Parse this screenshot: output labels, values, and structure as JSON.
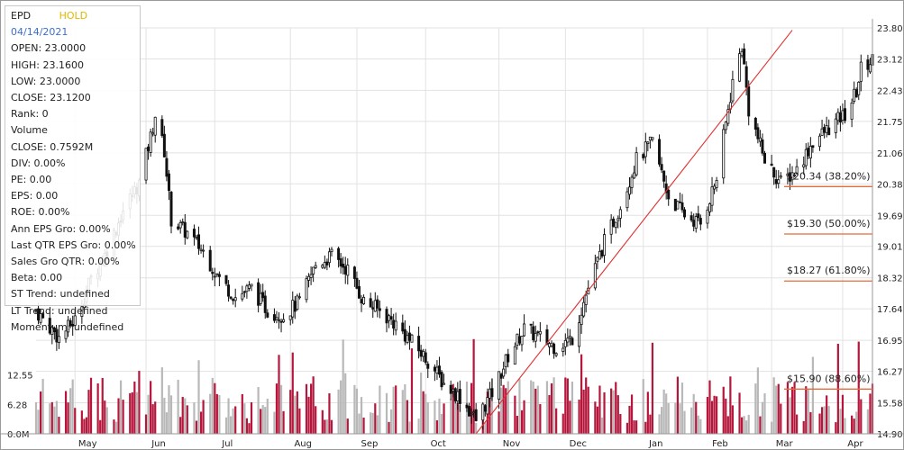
{
  "colors": {
    "up_volume": "#b5163b",
    "down_volume": "#b8b8b8",
    "candle": "#111111",
    "trendline": "#e03030",
    "fib_line": "#e86a3a",
    "grid": "#e2e2e2",
    "rating": "#e0b800",
    "date": "#3b6fd0"
  },
  "info_panel": {
    "ticker": "EPD",
    "rating": "HOLD",
    "date": "04/14/2021",
    "rows": [
      "OPEN: 23.0000",
      "HIGH: 23.1600",
      "LOW: 23.0000",
      "CLOSE: 23.1200",
      "Rank: 0",
      "Volume",
      "CLOSE: 0.7592M",
      "DIV: 0.00%",
      "PE: 0.00",
      "EPS: 0.00",
      "ROE: 0.00%",
      "Ann EPS Gro: 0.00%",
      "Last QTR EPS Gro: 0.00%",
      "Sales Gro QTR: 0.00%",
      "Beta: 0.00",
      "ST Trend: undefined",
      "LT Trend: undefined",
      "Momentum: undefined"
    ]
  },
  "chart_data": {
    "type": "candlestick",
    "ticker": "EPD",
    "price_axis": {
      "ticks": [
        "23.80",
        "23.12",
        "22.43",
        "21.75",
        "21.06",
        "20.38",
        "19.69",
        "19.01",
        "18.32",
        "17.64",
        "16.95",
        "16.27",
        "15.58",
        "14.90"
      ],
      "ylim": [
        14.9,
        23.8
      ],
      "side": "right"
    },
    "volume_axis": {
      "ticks": [
        "12.55",
        "6.28",
        "0.0M"
      ],
      "ylim": [
        0,
        25
      ],
      "side": "left"
    },
    "x_axis": {
      "ticks": [
        "May",
        "Jun",
        "Jul",
        "Aug",
        "Sep",
        "Oct",
        "Nov",
        "Dec",
        "Jan",
        "Feb",
        "Mar",
        "Apr"
      ],
      "start_date": "2020-04-14",
      "end_date": "2021-04-14"
    },
    "price_path": [
      [
        "2020-04-14",
        17.6
      ],
      [
        "2020-04-24",
        17.0
      ],
      [
        "2020-05-01",
        17.4
      ],
      [
        "2020-05-08",
        18.3
      ],
      [
        "2020-05-15",
        18.9
      ],
      [
        "2020-05-22",
        19.8
      ],
      [
        "2020-05-29",
        20.4
      ],
      [
        "2020-06-03",
        21.4
      ],
      [
        "2020-06-05",
        21.9
      ],
      [
        "2020-06-09",
        21.1
      ],
      [
        "2020-06-12",
        19.6
      ],
      [
        "2020-06-19",
        19.3
      ],
      [
        "2020-06-26",
        18.9
      ],
      [
        "2020-07-03",
        18.3
      ],
      [
        "2020-07-10",
        17.9
      ],
      [
        "2020-07-17",
        18.1
      ],
      [
        "2020-07-24",
        17.6
      ],
      [
        "2020-07-31",
        17.5
      ],
      [
        "2020-08-07",
        17.8
      ],
      [
        "2020-08-14",
        18.6
      ],
      [
        "2020-08-21",
        18.8
      ],
      [
        "2020-08-28",
        18.5
      ],
      [
        "2020-09-04",
        17.8
      ],
      [
        "2020-09-11",
        17.6
      ],
      [
        "2020-09-18",
        17.3
      ],
      [
        "2020-09-25",
        16.9
      ],
      [
        "2020-10-02",
        16.5
      ],
      [
        "2020-10-09",
        16.0
      ],
      [
        "2020-10-16",
        15.7
      ],
      [
        "2020-10-23",
        15.2
      ],
      [
        "2020-10-30",
        15.8
      ],
      [
        "2020-11-06",
        16.6
      ],
      [
        "2020-11-13",
        17.2
      ],
      [
        "2020-11-20",
        17.0
      ],
      [
        "2020-11-27",
        16.8
      ],
      [
        "2020-12-04",
        17.0
      ],
      [
        "2020-12-11",
        18.1
      ],
      [
        "2020-12-18",
        19.1
      ],
      [
        "2020-12-25",
        19.9
      ],
      [
        "2021-01-01",
        20.9
      ],
      [
        "2021-01-08",
        21.3
      ],
      [
        "2021-01-15",
        20.1
      ],
      [
        "2021-01-22",
        19.7
      ],
      [
        "2021-01-29",
        19.5
      ],
      [
        "2021-02-05",
        20.5
      ],
      [
        "2021-02-12",
        22.6
      ],
      [
        "2021-02-16",
        23.4
      ],
      [
        "2021-02-19",
        22.0
      ],
      [
        "2021-02-26",
        20.9
      ],
      [
        "2021-03-05",
        20.4
      ],
      [
        "2021-03-12",
        20.7
      ],
      [
        "2021-03-19",
        21.3
      ],
      [
        "2021-03-26",
        21.6
      ],
      [
        "2021-04-02",
        21.9
      ],
      [
        "2021-04-07",
        22.4
      ],
      [
        "2021-04-09",
        22.9
      ],
      [
        "2021-04-14",
        23.1
      ]
    ],
    "volume_avg_millions": 6.5,
    "trendline": {
      "from": {
        "date": "2020-10-23",
        "price": 14.9
      },
      "to": {
        "date": "2021-03-10",
        "price": 23.75
      }
    },
    "fib_levels": [
      {
        "label": "$20.34 (38.20%)",
        "price": 20.34
      },
      {
        "label": "$19.30 (50.00%)",
        "price": 19.3
      },
      {
        "label": "$18.27 (61.80%)",
        "price": 18.27
      },
      {
        "label": "$15.90 (88.60%)",
        "price": 15.9
      }
    ]
  }
}
